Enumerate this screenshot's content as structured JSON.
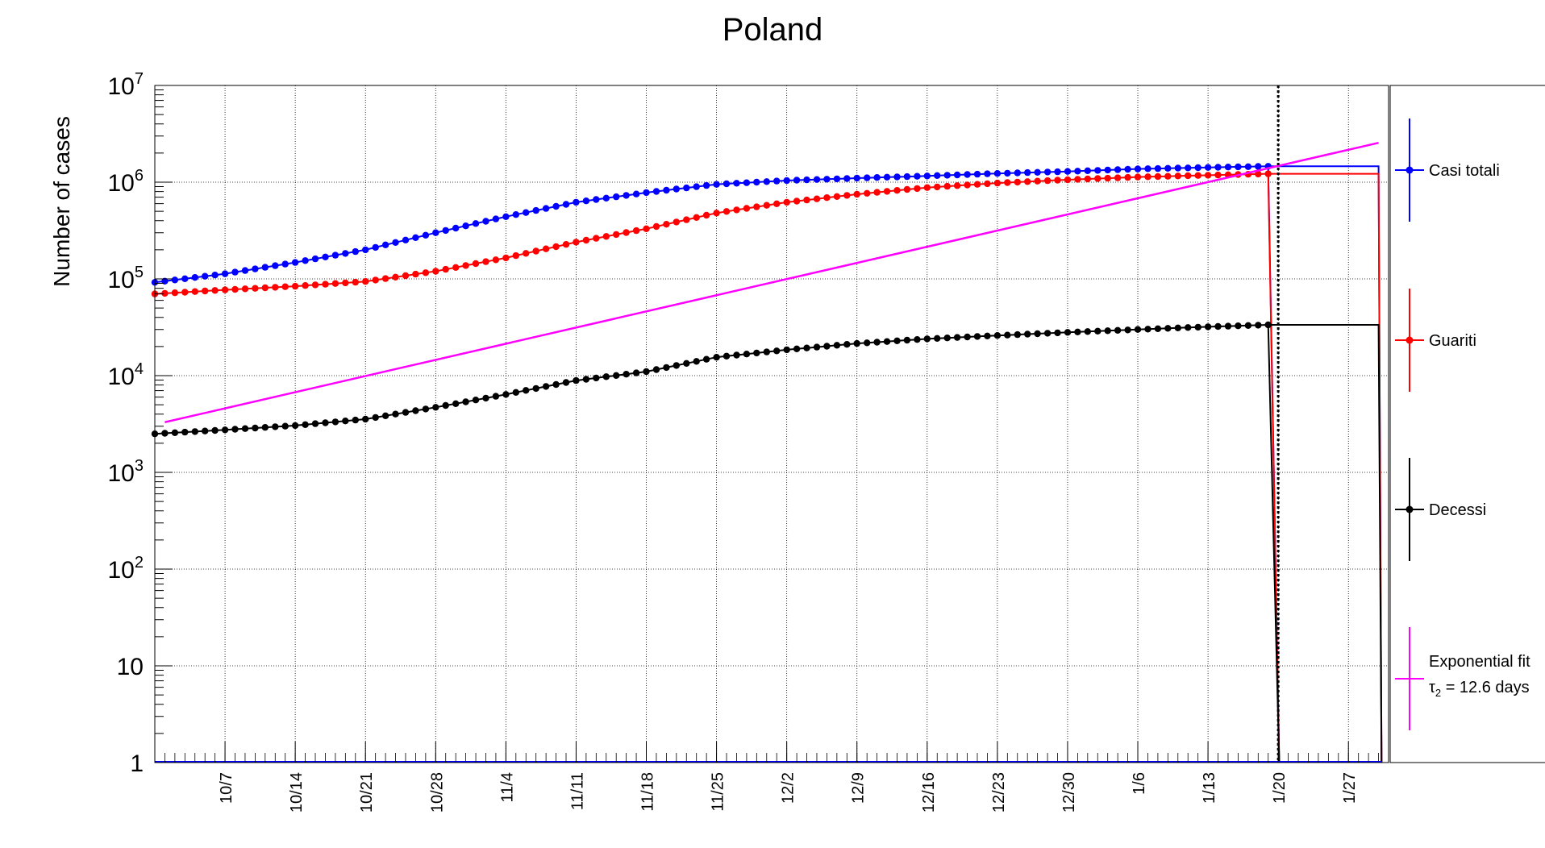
{
  "chart_data": {
    "type": "line",
    "title": "Poland",
    "ylabel": "Number of cases",
    "xlabel": "",
    "y_scale": "log",
    "ylim": [
      1,
      10000000
    ],
    "grid": true,
    "legend_placement": "right",
    "y_ticks": [
      {
        "value": 1,
        "base": "1",
        "exp": ""
      },
      {
        "value": 10,
        "base": "10",
        "exp": ""
      },
      {
        "value": 100,
        "base": "10",
        "exp": "2"
      },
      {
        "value": 1000,
        "base": "10",
        "exp": "3"
      },
      {
        "value": 10000,
        "base": "10",
        "exp": "4"
      },
      {
        "value": 100000,
        "base": "10",
        "exp": "5"
      },
      {
        "value": 1000000,
        "base": "10",
        "exp": "6"
      },
      {
        "value": 10000000,
        "base": "10",
        "exp": "7"
      }
    ],
    "x_ticks": [
      "10/7",
      "10/14",
      "10/21",
      "10/28",
      "11/4",
      "11/11",
      "11/18",
      "11/25",
      "12/2",
      "12/9",
      "12/16",
      "12/23",
      "12/30",
      "1/6",
      "1/13",
      "1/20",
      "1/27"
    ],
    "x_tick_dates": [
      "2020-10-07",
      "2020-10-14",
      "2020-10-21",
      "2020-10-28",
      "2020-11-04",
      "2020-11-11",
      "2020-11-18",
      "2020-11-25",
      "2020-12-02",
      "2020-12-09",
      "2020-12-16",
      "2020-12-23",
      "2020-12-30",
      "2021-01-06",
      "2021-01-13",
      "2021-01-20",
      "2021-01-27"
    ],
    "date_range": [
      "2020-09-30",
      "2021-01-31"
    ],
    "data_start": "2020-09-30",
    "data_end": "2021-01-19",
    "line_end": "2021-01-30",
    "marker_date": "2021-01-20",
    "series": [
      {
        "name": "Casi totali",
        "color": "#0000ff",
        "knots": [
          [
            "2020-09-30",
            92000
          ],
          [
            "2020-10-07",
            113000
          ],
          [
            "2020-10-14",
            148000
          ],
          [
            "2020-10-21",
            200000
          ],
          [
            "2020-10-28",
            300000
          ],
          [
            "2020-11-04",
            440000
          ],
          [
            "2020-11-11",
            620000
          ],
          [
            "2020-11-18",
            780000
          ],
          [
            "2020-11-25",
            950000
          ],
          [
            "2020-12-02",
            1040000
          ],
          [
            "2020-12-09",
            1100000
          ],
          [
            "2020-12-16",
            1160000
          ],
          [
            "2020-12-23",
            1230000
          ],
          [
            "2020-12-30",
            1290000
          ],
          [
            "2021-01-06",
            1370000
          ],
          [
            "2021-01-13",
            1420000
          ],
          [
            "2021-01-19",
            1460000
          ]
        ]
      },
      {
        "name": "Guariti",
        "color": "#ff0000",
        "knots": [
          [
            "2020-09-30",
            70000
          ],
          [
            "2020-10-07",
            77000
          ],
          [
            "2020-10-14",
            84000
          ],
          [
            "2020-10-21",
            94000
          ],
          [
            "2020-10-28",
            120000
          ],
          [
            "2020-11-04",
            165000
          ],
          [
            "2020-11-11",
            240000
          ],
          [
            "2020-11-18",
            330000
          ],
          [
            "2020-11-25",
            480000
          ],
          [
            "2020-12-02",
            620000
          ],
          [
            "2020-12-09",
            750000
          ],
          [
            "2020-12-16",
            880000
          ],
          [
            "2020-12-23",
            980000
          ],
          [
            "2020-12-30",
            1060000
          ],
          [
            "2021-01-06",
            1130000
          ],
          [
            "2021-01-13",
            1180000
          ],
          [
            "2021-01-19",
            1220000
          ]
        ]
      },
      {
        "name": "Decessi",
        "color": "#000000",
        "knots": [
          [
            "2020-09-30",
            2500
          ],
          [
            "2020-10-07",
            2750
          ],
          [
            "2020-10-14",
            3050
          ],
          [
            "2020-10-21",
            3550
          ],
          [
            "2020-10-28",
            4700
          ],
          [
            "2020-11-04",
            6400
          ],
          [
            "2020-11-11",
            8900
          ],
          [
            "2020-11-18",
            11000
          ],
          [
            "2020-11-25",
            15500
          ],
          [
            "2020-12-02",
            18500
          ],
          [
            "2020-12-09",
            21500
          ],
          [
            "2020-12-16",
            24000
          ],
          [
            "2020-12-23",
            26000
          ],
          [
            "2020-12-30",
            28000
          ],
          [
            "2021-01-06",
            30000
          ],
          [
            "2021-01-13",
            32000
          ],
          [
            "2021-01-19",
            33500
          ]
        ]
      }
    ],
    "fit": {
      "name": "Exponential fit",
      "label_line2_base": "τ",
      "label_line2_sub": "2",
      "label_line2_rest": " = 12.6 days",
      "color": "#ff00ff",
      "start": [
        "2020-10-01",
        3300
      ],
      "end": [
        "2021-01-30",
        2550000
      ]
    }
  }
}
